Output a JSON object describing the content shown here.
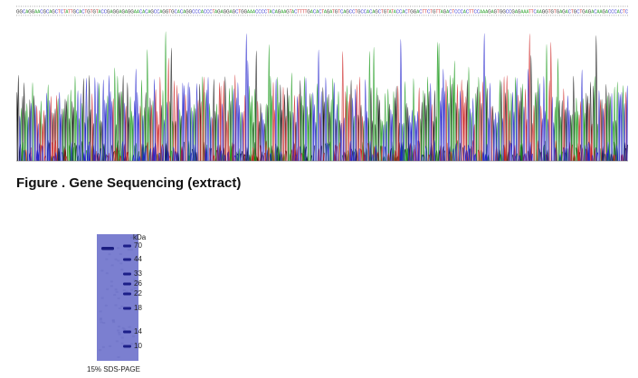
{
  "sequence": {
    "text": "GGCAGGAACGCAGCTCTATTGCACTGTGTACCGAGGAGAGGAACACAGCCAGGTGCACAGGCCCACCCTAGAGGAGCTGGAAACCCCTACAGAAGTACTTTTGACACTAGATGTCAGCCTGCCACAGCTGTATACCACTGGACTTCTGTTAGACTCCCACTTCCAAAGAGTGGCCGAGAAATTCAAGGTGTGAGACTGCTGAGACAAGACCCACTC",
    "colors": {
      "A": "#1a9a1a",
      "C": "#2222cc",
      "G": "#111111",
      "T": "#cc2222"
    }
  },
  "figure_caption": "Figure . Gene Sequencing (extract)",
  "gel": {
    "unit": "kDa",
    "markers": [
      {
        "label": "70",
        "kda": 70
      },
      {
        "label": "44",
        "kda": 44
      },
      {
        "label": "33",
        "kda": 33
      },
      {
        "label": "26",
        "kda": 26
      },
      {
        "label": "22",
        "kda": 22
      },
      {
        "label": "18",
        "kda": 18
      },
      {
        "label": "14",
        "kda": 14
      },
      {
        "label": "10",
        "kda": 10
      }
    ],
    "caption": "15% SDS-PAGE",
    "gel_color": "#7b7fd0"
  }
}
